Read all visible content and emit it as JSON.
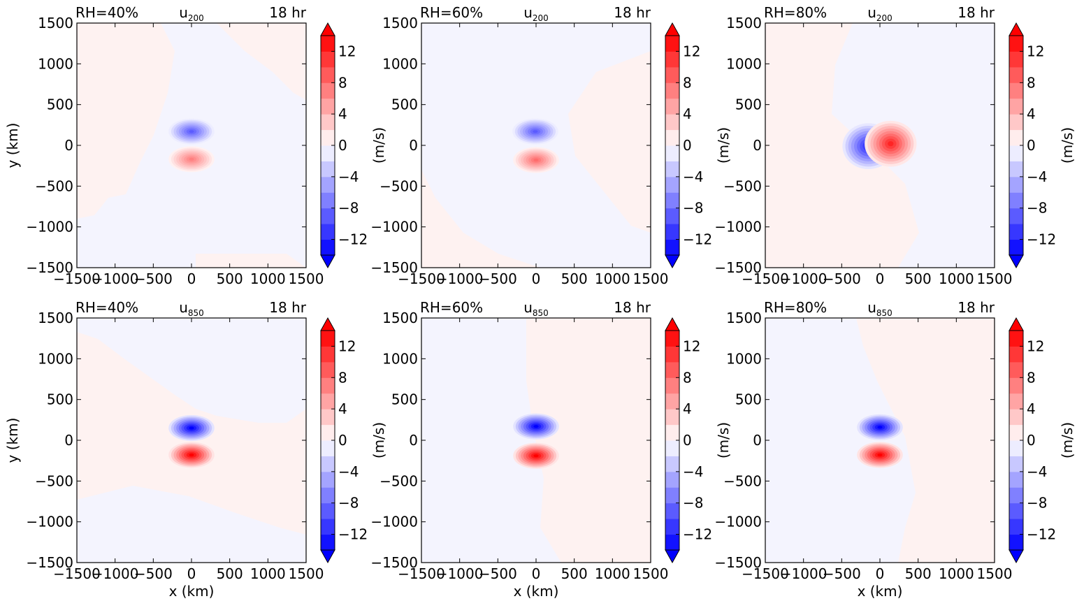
{
  "chart_data": {
    "type": "heatmap",
    "colormap": {
      "name": "bwr",
      "levels": [
        -14,
        -12,
        -10,
        -8,
        -6,
        -4,
        -2,
        0,
        2,
        4,
        6,
        8,
        10,
        12,
        14
      ],
      "ticks": [
        "12",
        "8",
        "4",
        "0",
        "−12",
        "−8",
        "−4"
      ],
      "tick_values": [
        12,
        8,
        4,
        0,
        -12,
        -8,
        -4
      ],
      "negative_color": "#0000ff",
      "zero_color": "#ffffff",
      "positive_color": "#ff0000",
      "extend": "both"
    },
    "axis_ticks": [
      "−1500",
      "−1000",
      "−500",
      "0",
      "500",
      "1000",
      "1500"
    ],
    "tick_values": [
      -1500,
      -1000,
      -500,
      0,
      500,
      1000,
      1500
    ],
    "xlim": [
      -1500,
      1500
    ],
    "ylim": [
      -1500,
      1500
    ],
    "xlabel": "x (km)",
    "ylabel": "y (km)",
    "cbar_label": "(m/s)",
    "time_label": "18 hr",
    "panels": [
      {
        "rh": "RH=40%",
        "var": "u",
        "level": "200",
        "features": [
          {
            "x": 0,
            "y": 170,
            "value": -9
          },
          {
            "x": 0,
            "y": -170,
            "value": 7
          }
        ]
      },
      {
        "rh": "RH=60%",
        "var": "u",
        "level": "200",
        "features": [
          {
            "x": -10,
            "y": 170,
            "value": -9
          },
          {
            "x": 0,
            "y": -180,
            "value": 8
          }
        ]
      },
      {
        "rh": "RH=80%",
        "var": "u",
        "level": "200",
        "features": [
          {
            "x": -150,
            "y": -10,
            "value": -12
          },
          {
            "x": 140,
            "y": 20,
            "value": 12
          }
        ]
      },
      {
        "rh": "RH=40%",
        "var": "u",
        "level": "850",
        "features": [
          {
            "x": 0,
            "y": 150,
            "value": -14
          },
          {
            "x": 0,
            "y": -180,
            "value": 14
          }
        ]
      },
      {
        "rh": "RH=60%",
        "var": "u",
        "level": "850",
        "features": [
          {
            "x": 0,
            "y": 170,
            "value": -14
          },
          {
            "x": 0,
            "y": -190,
            "value": 14
          }
        ]
      },
      {
        "rh": "RH=80%",
        "var": "u",
        "level": "850",
        "features": [
          {
            "x": 0,
            "y": 160,
            "value": -14
          },
          {
            "x": 0,
            "y": -180,
            "value": 14
          }
        ]
      }
    ]
  }
}
